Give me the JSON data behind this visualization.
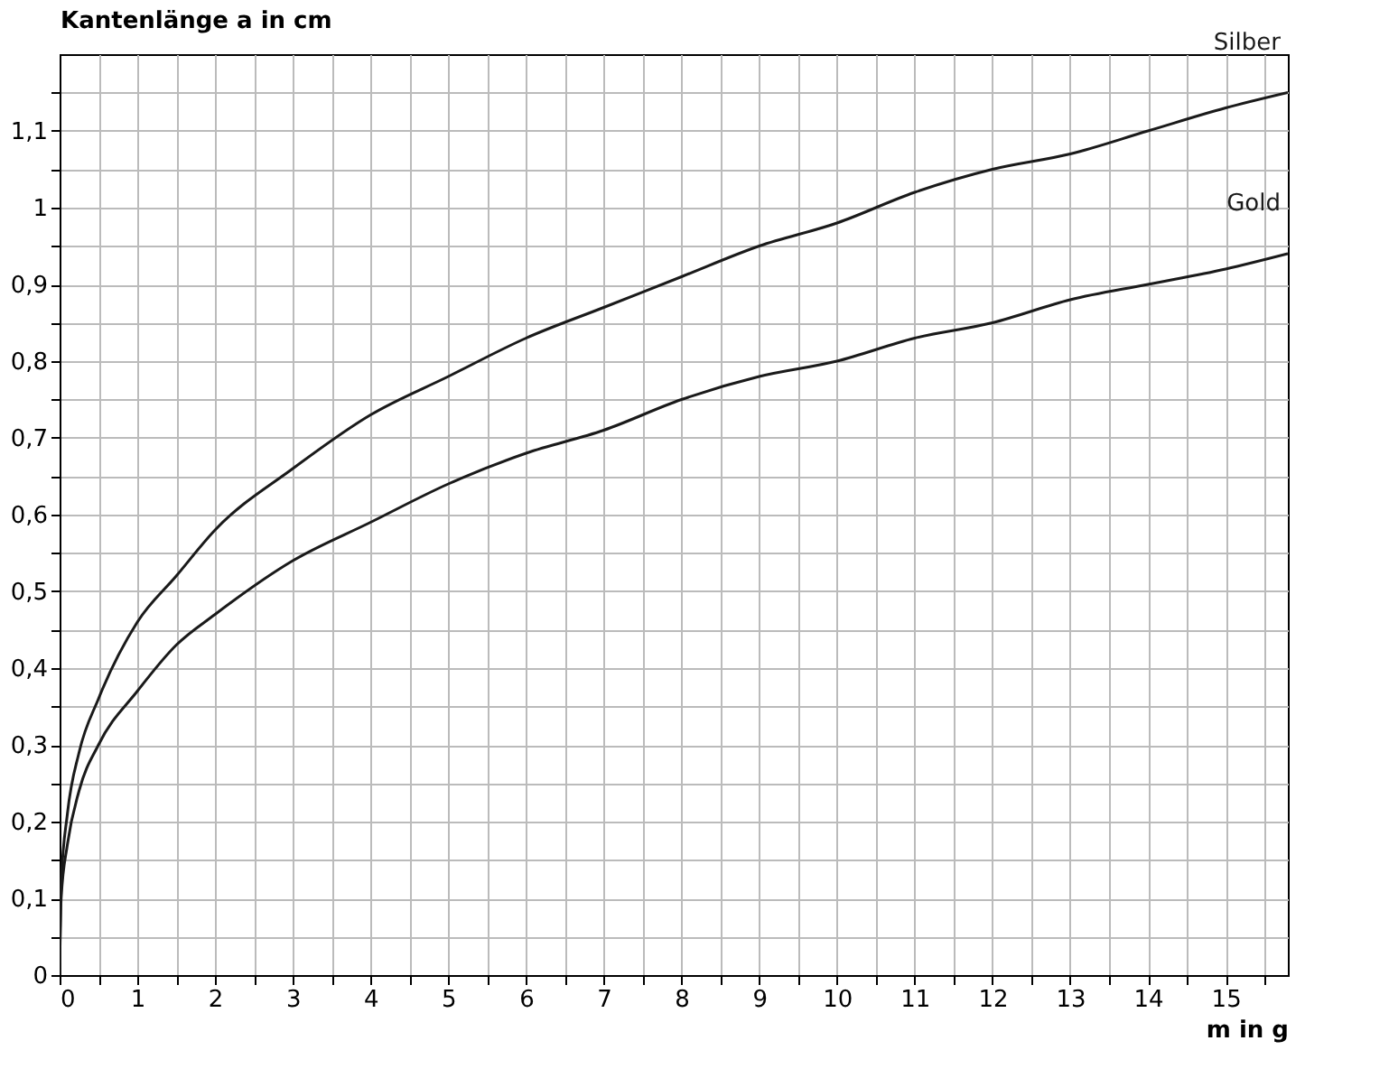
{
  "chart_data": {
    "type": "line",
    "xlabel": "m in g",
    "ylabel": "Kantenlänge a in cm",
    "x": [
      0,
      0.02,
      0.1,
      0.25,
      0.5,
      1,
      1.5,
      2,
      3,
      4,
      5,
      6,
      7,
      8,
      9,
      10,
      11,
      12,
      13,
      14,
      15,
      15.8
    ],
    "series": [
      {
        "name": "Silber",
        "color": "#1a1a1a",
        "values": [
          0,
          0.12,
          0.21,
          0.29,
          0.36,
          0.46,
          0.52,
          0.58,
          0.66,
          0.73,
          0.78,
          0.83,
          0.87,
          0.91,
          0.95,
          0.98,
          1.02,
          1.05,
          1.07,
          1.1,
          1.13,
          1.15
        ]
      },
      {
        "name": "Gold",
        "color": "#1a1a1a",
        "values": [
          0,
          0.1,
          0.17,
          0.24,
          0.3,
          0.37,
          0.43,
          0.47,
          0.54,
          0.59,
          0.64,
          0.68,
          0.71,
          0.75,
          0.78,
          0.8,
          0.83,
          0.85,
          0.88,
          0.9,
          0.92,
          0.94
        ]
      }
    ],
    "xlim": [
      0,
      15.8
    ],
    "ylim": [
      0,
      1.2
    ],
    "xticks": [
      0,
      {
        "value": 0.5,
        "label": null
      },
      1,
      {
        "value": 1.5,
        "label": null
      },
      2,
      {
        "value": 2.5,
        "label": null
      },
      3,
      {
        "value": 3.5,
        "label": null
      },
      4,
      {
        "value": 4.5,
        "label": null
      },
      5,
      {
        "value": 5.5,
        "label": null
      },
      6,
      {
        "value": 6.5,
        "label": null
      },
      7,
      {
        "value": 7.5,
        "label": null
      },
      8,
      {
        "value": 8.5,
        "label": null
      },
      9,
      {
        "value": 9.5,
        "label": null
      },
      10,
      {
        "value": 10.5,
        "label": null
      },
      11,
      {
        "value": 11.5,
        "label": null
      },
      12,
      {
        "value": 12.5,
        "label": null
      },
      13,
      {
        "value": 13.5,
        "label": null
      },
      14,
      {
        "value": 14.5,
        "label": null
      },
      15,
      {
        "value": 15.5,
        "label": null
      }
    ],
    "yticks": [
      0,
      {
        "value": 0.05,
        "label": null
      },
      {
        "value": 0.1,
        "label": "0,1"
      },
      {
        "value": 0.15,
        "label": null
      },
      {
        "value": 0.2,
        "label": "0,2"
      },
      {
        "value": 0.25,
        "label": null
      },
      {
        "value": 0.3,
        "label": "0,3"
      },
      {
        "value": 0.35,
        "label": null
      },
      {
        "value": 0.4,
        "label": "0,4"
      },
      {
        "value": 0.45,
        "label": null
      },
      {
        "value": 0.5,
        "label": "0,5"
      },
      {
        "value": 0.55,
        "label": null
      },
      {
        "value": 0.6,
        "label": "0,6"
      },
      {
        "value": 0.65,
        "label": null
      },
      {
        "value": 0.7,
        "label": "0,7"
      },
      {
        "value": 0.75,
        "label": null
      },
      {
        "value": 0.8,
        "label": "0,8"
      },
      {
        "value": 0.85,
        "label": null
      },
      {
        "value": 0.9,
        "label": "0,9"
      },
      {
        "value": 0.95,
        "label": null
      },
      1,
      {
        "value": 1.05,
        "label": null
      },
      {
        "value": 1.1,
        "label": "1,1"
      },
      {
        "value": 1.15,
        "label": null
      }
    ],
    "grid": true,
    "line_style": "solid",
    "marker": "none"
  }
}
